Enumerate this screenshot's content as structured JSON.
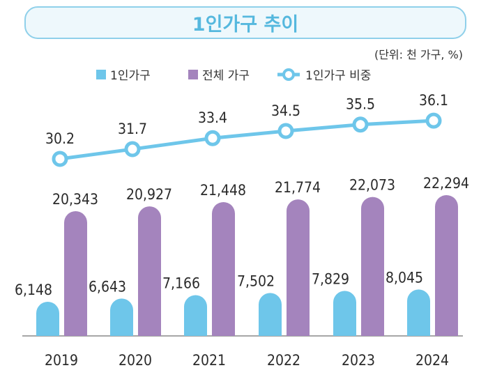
{
  "chart_data": {
    "type": "bar+line",
    "title": "1인가구 추이",
    "unit_note": "(단위: 천 가구, %)",
    "categories": [
      "2019",
      "2020",
      "2021",
      "2022",
      "2023",
      "2024"
    ],
    "series": [
      {
        "name": "1인가구",
        "type": "bar",
        "color": "#6ec6ea",
        "values": [
          6148,
          6643,
          7166,
          7502,
          7829,
          8045
        ],
        "labels": [
          "6,148",
          "6,643",
          "7,166",
          "7,502",
          "7,829",
          "8,045"
        ]
      },
      {
        "name": "전체 가구",
        "type": "bar",
        "color": "#a484bd",
        "values": [
          20343,
          20927,
          21448,
          21774,
          22073,
          22294
        ],
        "labels": [
          "20,343",
          "20,927",
          "21,448",
          "21,774",
          "22,073",
          "22,294"
        ]
      },
      {
        "name": "1인가구 비중",
        "type": "line",
        "color": "#6ec6ea",
        "values": [
          30.2,
          31.7,
          33.4,
          34.5,
          35.5,
          36.1
        ],
        "labels": [
          "30.2",
          "31.7",
          "33.4",
          "34.5",
          "35.5",
          "36.1"
        ]
      }
    ],
    "legend_position": "top",
    "grid": false
  }
}
